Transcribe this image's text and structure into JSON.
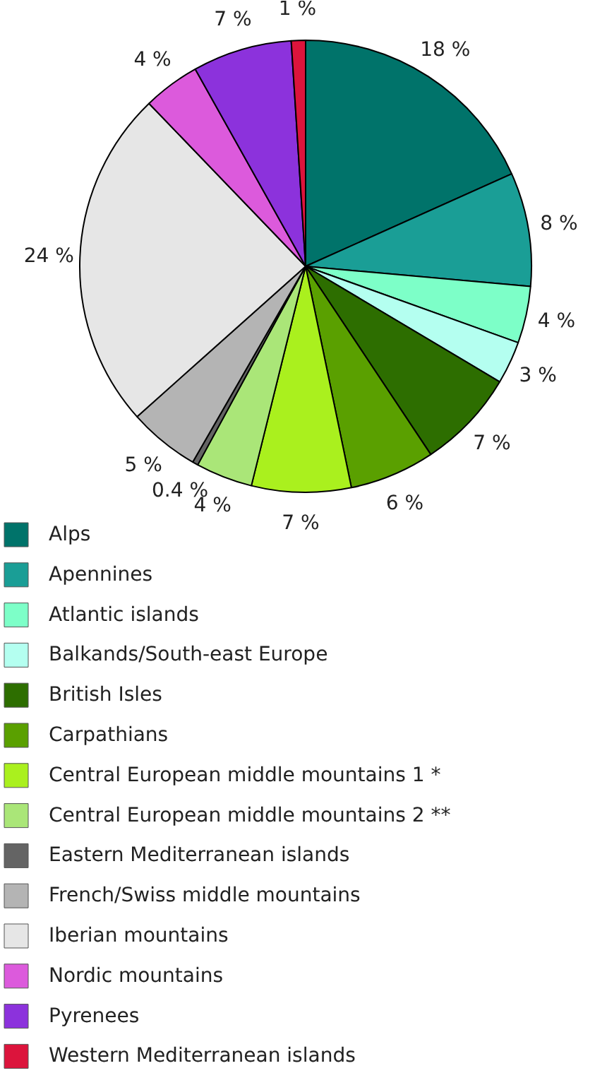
{
  "chart_data": {
    "type": "pie",
    "categories": [
      "Alps",
      "Apennines",
      "Atlantic islands",
      "Balkands/South-east Europe",
      "British Isles",
      "Carpathians",
      "Central European middle mountains 1 *",
      "Central European middle mountains 2 **",
      "Eastern Mediterranean islands",
      "French/Swiss middle mountains",
      "Iberian mountains",
      "Nordic mountains",
      "Pyrenees",
      "Western Mediterranean islands"
    ],
    "values": [
      18,
      8,
      4,
      3,
      7,
      6,
      7,
      4,
      0.4,
      5,
      24,
      4,
      7,
      1
    ],
    "value_labels": [
      "18 %",
      "8 %",
      "4 %",
      "3 %",
      "7 %",
      "6 %",
      "7 %",
      "4 %",
      "0.4 %",
      "5 %",
      "24 %",
      "4 %",
      "7 %",
      "1 %"
    ],
    "colors": [
      "#00736a",
      "#1a9e96",
      "#7dffc8",
      "#b4fff0",
      "#2d6e00",
      "#5aa000",
      "#aaf01e",
      "#aae678",
      "#646464",
      "#b4b4b4",
      "#e6e6e6",
      "#dc5adc",
      "#8c32dc",
      "#dc143c"
    ],
    "legend": "bottom"
  }
}
